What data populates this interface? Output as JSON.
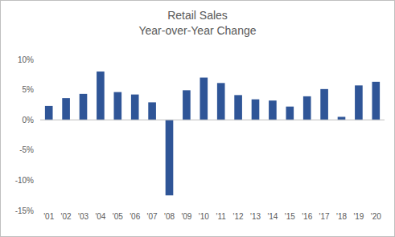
{
  "chart_data": {
    "type": "bar",
    "title": "Retail Sales",
    "subtitle": "Year-over-Year Change",
    "categories": [
      "'01",
      "'02",
      "'03",
      "'04",
      "'05",
      "'06",
      "'07",
      "'08",
      "'09",
      "'10",
      "'11",
      "'12",
      "'13",
      "'14",
      "'15",
      "'16",
      "'17",
      "'18",
      "'19",
      "'20"
    ],
    "values": [
      2.3,
      3.6,
      4.3,
      8.0,
      4.6,
      4.2,
      2.9,
      -12.5,
      4.9,
      7.0,
      6.1,
      4.1,
      3.4,
      3.2,
      2.2,
      3.9,
      5.1,
      0.5,
      5.7,
      6.3
    ],
    "color": "#2f5597",
    "ylim": [
      -15,
      10
    ],
    "yticks": [
      {
        "value": -15,
        "label": "-15%"
      },
      {
        "value": -10,
        "label": "-10%"
      },
      {
        "value": -5,
        "label": "-5%"
      },
      {
        "value": 0,
        "label": "0%"
      },
      {
        "value": 5,
        "label": "5%"
      },
      {
        "value": 10,
        "label": "10%"
      }
    ],
    "grid": false
  }
}
